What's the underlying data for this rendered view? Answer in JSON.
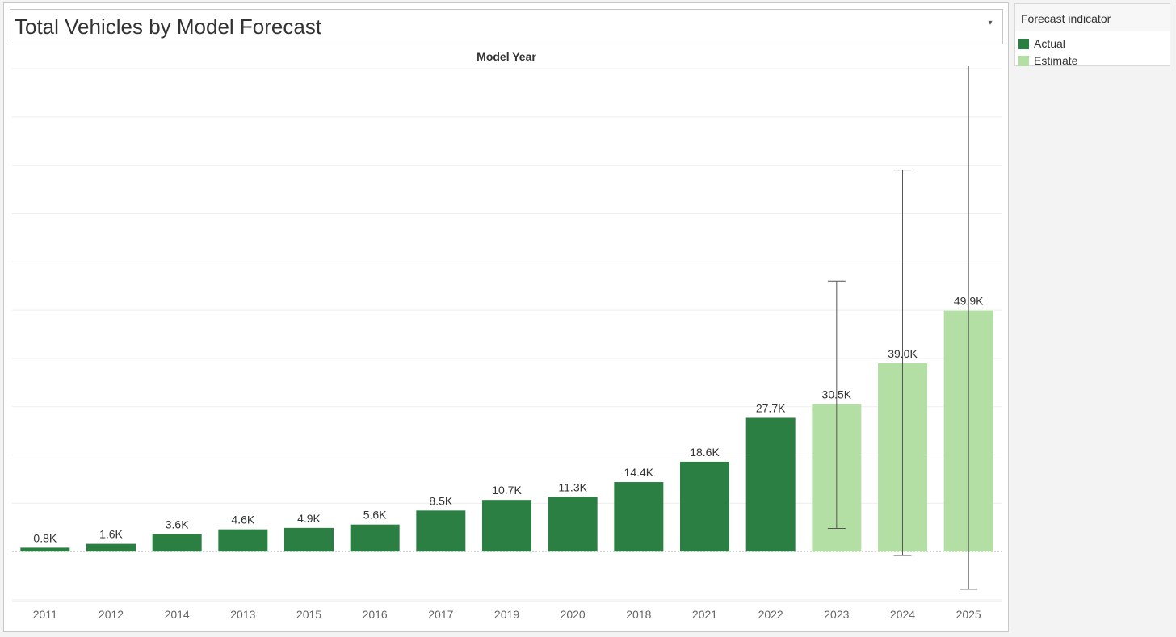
{
  "title": "Total Vehicles by Model Forecast",
  "legend": {
    "title": "Forecast indicator",
    "items": [
      {
        "label": "Actual",
        "color": "#2b7f43"
      },
      {
        "label": "Estimate",
        "color": "#b3dfa5"
      }
    ]
  },
  "chart_data": {
    "type": "bar",
    "xlabel": "Model Year",
    "ylabel": "",
    "ylim": [
      -10000,
      100000
    ],
    "grid": true,
    "legend_position": "top-right",
    "categories": [
      "2011",
      "2012",
      "2014",
      "2013",
      "2015",
      "2016",
      "2017",
      "2019",
      "2020",
      "2018",
      "2021",
      "2022",
      "2023",
      "2024",
      "2025"
    ],
    "values": [
      800,
      1600,
      3600,
      4600,
      4900,
      5600,
      8500,
      10700,
      11300,
      14400,
      18600,
      27700,
      30500,
      39000,
      49900
    ],
    "value_labels": [
      "0.8K",
      "1.6K",
      "3.6K",
      "4.6K",
      "4.9K",
      "5.6K",
      "8.5K",
      "10.7K",
      "11.3K",
      "14.4K",
      "18.6K",
      "27.7K",
      "30.5K",
      "39.0K",
      "49.9K"
    ],
    "forecast_indicator": [
      "Actual",
      "Actual",
      "Actual",
      "Actual",
      "Actual",
      "Actual",
      "Actual",
      "Actual",
      "Actual",
      "Actual",
      "Actual",
      "Actual",
      "Estimate",
      "Estimate",
      "Estimate"
    ],
    "prediction_intervals": [
      {
        "category": "2023",
        "low": 4800,
        "high": 56000
      },
      {
        "category": "2024",
        "low": -800,
        "high": 79000
      },
      {
        "category": "2025",
        "low": -7800,
        "high": 100500
      }
    ]
  }
}
